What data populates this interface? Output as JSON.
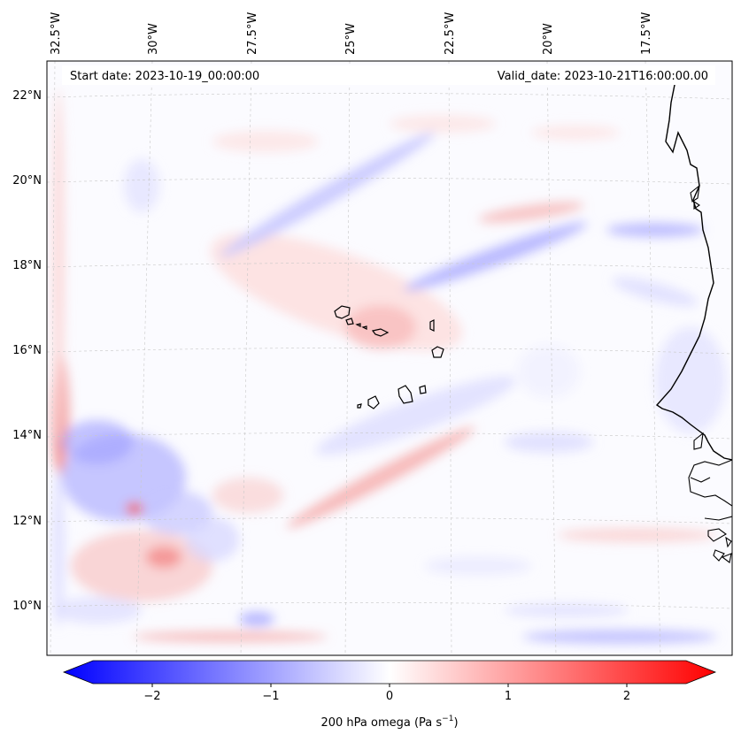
{
  "header": {
    "start_date": "Start date: 2023-10-19_00:00:00",
    "valid_date": "Valid_date: 2023-10-21T16:00:00.00"
  },
  "lon_ticks": [
    "32.5°W",
    "30°W",
    "27.5°W",
    "25°W",
    "22.5°W",
    "20°W",
    "17.5°W"
  ],
  "lat_ticks": [
    "22°N",
    "20°N",
    "18°N",
    "16°N",
    "14°N",
    "12°N",
    "10°N"
  ],
  "colorbar": {
    "ticks": [
      "−2",
      "−1",
      "0",
      "1",
      "2"
    ],
    "tick_values": [
      -2,
      -1,
      0,
      1,
      2
    ],
    "range": [
      -2.5,
      2.5
    ],
    "label_main": "200 hPa omega (Pa s",
    "label_exp": "−1",
    "label_end": ")",
    "neg_color": "#0000ff",
    "mid_color": "#ffffff",
    "pos_color": "#ff0000"
  },
  "colors": {
    "coastline": "#000000",
    "gridline": "#c8c8c8",
    "frame": "#000000"
  }
}
